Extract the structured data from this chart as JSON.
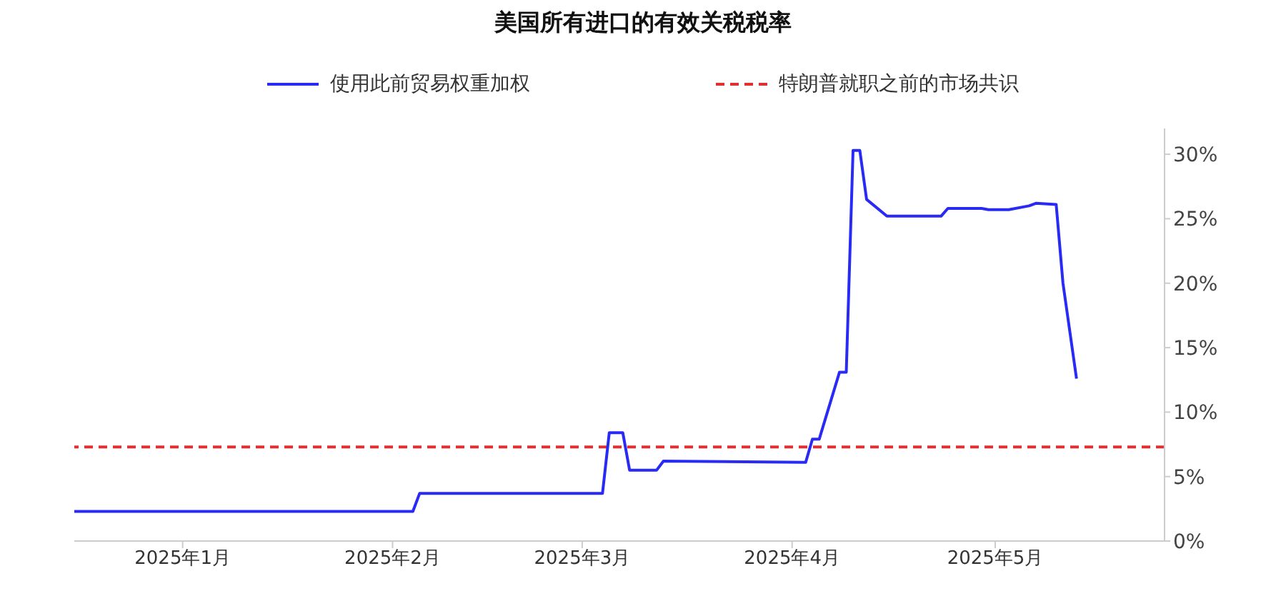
{
  "chart_data": {
    "type": "line",
    "title": "美国所有进口的有效关税税率",
    "x": [
      "2024-12-16",
      "2025-02-04",
      "2025-02-05",
      "2025-03-04",
      "2025-03-05",
      "2025-03-07",
      "2025-03-08",
      "2025-03-12",
      "2025-03-13",
      "2025-04-03",
      "2025-04-04",
      "2025-04-05",
      "2025-04-08",
      "2025-04-09",
      "2025-04-10",
      "2025-04-11",
      "2025-04-12",
      "2025-04-15",
      "2025-04-23",
      "2025-04-24",
      "2025-04-29",
      "2025-04-30",
      "2025-05-03",
      "2025-05-06",
      "2025-05-07",
      "2025-05-10",
      "2025-05-11",
      "2025-05-13"
    ],
    "series": [
      {
        "name": "使用此前贸易权重加权",
        "color": "#2a2af5",
        "values": [
          2.3,
          2.3,
          3.7,
          3.7,
          8.4,
          8.4,
          5.5,
          5.5,
          6.2,
          6.1,
          7.9,
          7.9,
          13.1,
          13.1,
          30.3,
          30.3,
          26.5,
          25.2,
          25.2,
          25.8,
          25.8,
          25.7,
          25.7,
          26.0,
          26.2,
          26.1,
          20.0,
          12.6
        ]
      }
    ],
    "ref_lines": [
      {
        "axis": "y",
        "value": 7.3,
        "label": "特朗普就职之前的市场共识",
        "color": "#e03030",
        "line_style": "dashed"
      }
    ],
    "xlim": [
      "2024-12-16",
      "2025-05-26"
    ],
    "xticks": [
      {
        "value": "2025-01-01",
        "label": "2025年1月"
      },
      {
        "value": "2025-02-01",
        "label": "2025年2月"
      },
      {
        "value": "2025-03-01",
        "label": "2025年3月"
      },
      {
        "value": "2025-04-01",
        "label": "2025年4月"
      },
      {
        "value": "2025-05-01",
        "label": "2025年5月"
      }
    ],
    "ylim": [
      0,
      32
    ],
    "yticks": [
      {
        "value": 0,
        "label": "0%"
      },
      {
        "value": 5,
        "label": "5%"
      },
      {
        "value": 10,
        "label": "10%"
      },
      {
        "value": 15,
        "label": "15%"
      },
      {
        "value": 20,
        "label": "20%"
      },
      {
        "value": 25,
        "label": "25%"
      },
      {
        "value": 30,
        "label": "30%"
      }
    ],
    "grid": false,
    "legend": "top",
    "marker": "none",
    "line_style": "solid"
  }
}
